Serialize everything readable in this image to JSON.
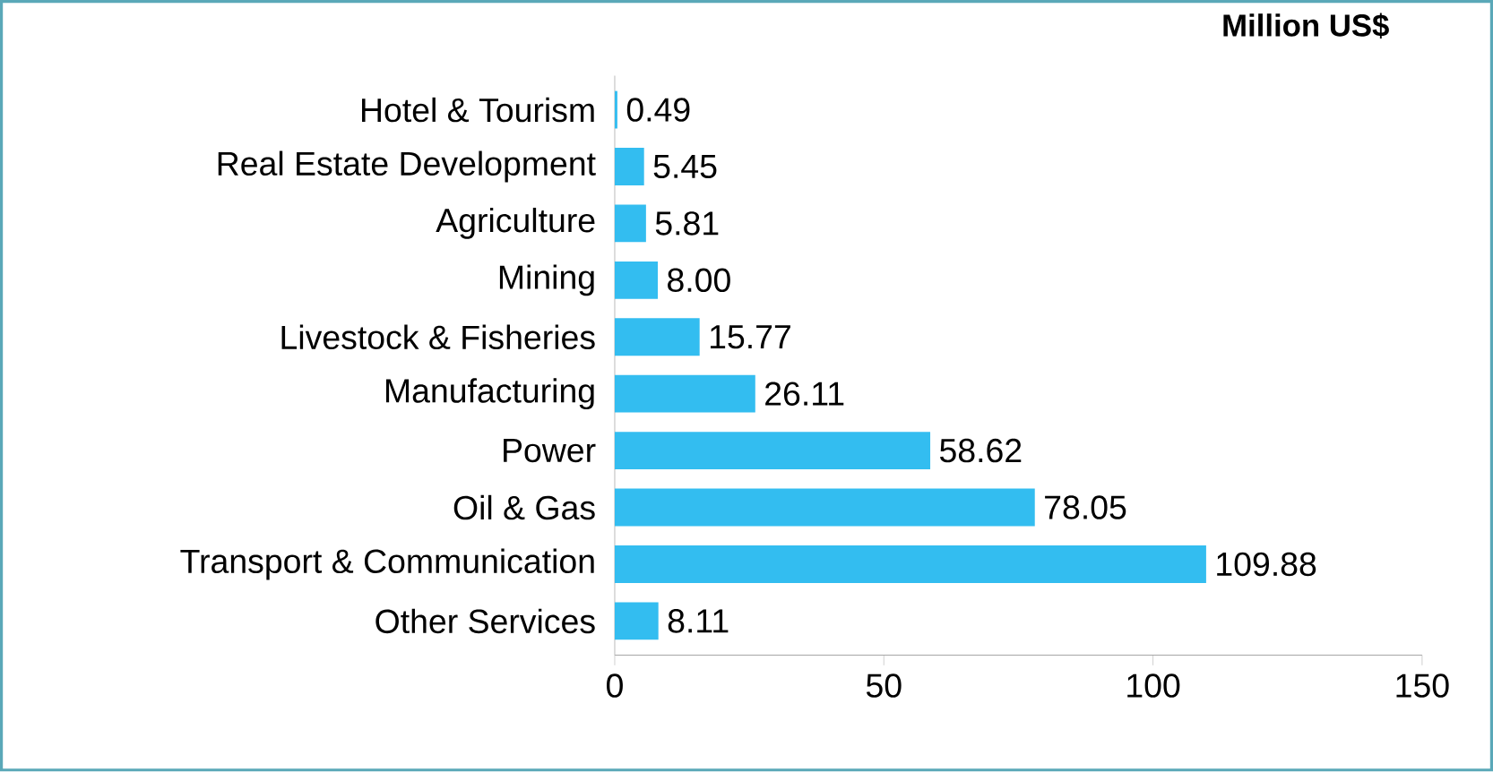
{
  "chart_data": {
    "type": "bar",
    "orientation": "horizontal",
    "title": "Million US$",
    "categories": [
      "Hotel & Tourism",
      "Real Estate Development",
      "Agriculture",
      "Mining",
      "Livestock & Fisheries",
      "Manufacturing",
      "Power",
      "Oil & Gas",
      "Transport & Communication",
      "Other Services"
    ],
    "values": [
      0.49,
      5.45,
      5.81,
      8.0,
      15.77,
      26.11,
      58.62,
      78.05,
      109.88,
      8.11
    ],
    "value_labels": [
      "0.49",
      "5.45",
      "5.81",
      "8.00",
      "15.77",
      "26.11",
      "58.62",
      "78.05",
      "109.88",
      "8.11"
    ],
    "color": "#33bdf0",
    "xlim": [
      0,
      150
    ],
    "xticks": [
      0,
      50,
      100,
      150
    ]
  }
}
